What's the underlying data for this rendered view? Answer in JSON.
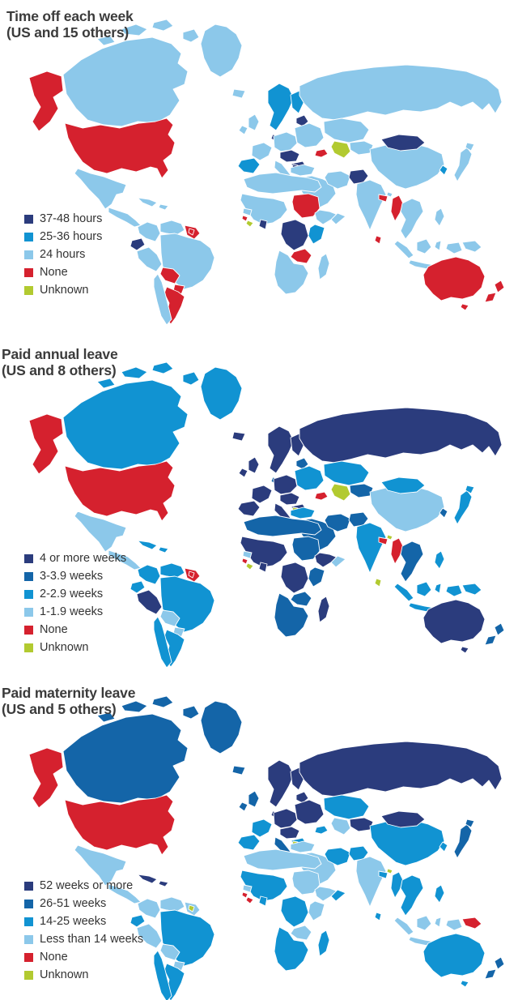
{
  "palette": {
    "navy": "#2b3c7d",
    "dark": "#1465a8",
    "mid": "#1193d2",
    "light": "#8cc8ea",
    "red": "#d5212e",
    "green": "#b2ca30"
  },
  "text_color": "#3b3b3b",
  "maps": [
    {
      "id": "time-off-each-week",
      "title_line1": "Time off each week",
      "title_line2": "(US and 15 others)",
      "legend": [
        {
          "label": "37-48 hours",
          "color_key": "navy"
        },
        {
          "label": "25-36 hours",
          "color_key": "mid"
        },
        {
          "label": "24 hours",
          "color_key": "light"
        },
        {
          "label": "None",
          "color_key": "red"
        },
        {
          "label": "Unknown",
          "color_key": "green"
        }
      ],
      "regions": {
        "greenland": "light",
        "canada": "light",
        "alaska": "red",
        "usa": "red",
        "mexico": "light",
        "central-america": "light",
        "caribbean": "light",
        "colombia": "light",
        "venezuela": "light",
        "guyanas": "red",
        "suriname": "red",
        "ecuador": "navy",
        "peru": "light",
        "brazil": "light",
        "bolivia": "red",
        "paraguay": "red",
        "argentina": "red",
        "chile": "light",
        "iceland": "light",
        "uk": "light",
        "scandinavia": "mid",
        "denmark": "navy",
        "baltics": "navy",
        "eastern-europe": "light",
        "central-europe": "light",
        "france": "light",
        "austria-hungary": "navy",
        "italy": "light",
        "balkans": "navy",
        "bosnia": "navy",
        "iberia": "mid",
        "russia": "light",
        "kazakhstan": "light",
        "central-asia": "light",
        "turkmenistan": "green",
        "caucasus": "red",
        "turkey": "light",
        "middle-east": "light",
        "iran": "light",
        "afghanistan": "navy",
        "india": "light",
        "nepal-bangladesh": "red",
        "bhutan": "light",
        "sri-lanka": "red",
        "myanmar": "red",
        "china": "light",
        "mongolia": "navy",
        "korea": "mid",
        "japan": "light",
        "se-asia": "light",
        "philippines": "light",
        "indonesia": "light",
        "png": "light",
        "australia": "red",
        "nz": "red",
        "north-africa": "light",
        "west-africa": "light",
        "guinea": "light",
        "sierra-leone": "red",
        "liberia": "green",
        "ghana": "navy",
        "sudan": "red",
        "east-africa-horn": "light",
        "somalia": "light",
        "kenya-tanzania": "mid",
        "drc": "navy",
        "zambia-zimbabwe": "red",
        "southern-africa": "light",
        "madagascar": "light"
      }
    },
    {
      "id": "paid-annual-leave",
      "title_line1": "Paid annual leave",
      "title_line2": "(US and 8 others)",
      "legend": [
        {
          "label": "4 or more weeks",
          "color_key": "navy"
        },
        {
          "label": "3-3.9 weeks",
          "color_key": "dark"
        },
        {
          "label": "2-2.9 weeks",
          "color_key": "mid"
        },
        {
          "label": "1-1.9 weeks",
          "color_key": "light"
        },
        {
          "label": "None",
          "color_key": "red"
        },
        {
          "label": "Unknown",
          "color_key": "green"
        }
      ],
      "regions": {
        "greenland": "mid",
        "canada": "mid",
        "alaska": "red",
        "usa": "red",
        "mexico": "light",
        "central-america": "light",
        "caribbean": "mid",
        "colombia": "mid",
        "venezuela": "mid",
        "guyanas": "red",
        "suriname": "red",
        "ecuador": "mid",
        "peru": "navy",
        "brazil": "mid",
        "bolivia": "light",
        "paraguay": "light",
        "argentina": "mid",
        "chile": "mid",
        "iceland": "navy",
        "uk": "navy",
        "scandinavia": "navy",
        "denmark": "dark",
        "baltics": "dark",
        "eastern-europe": "mid",
        "central-europe": "navy",
        "france": "navy",
        "austria-hungary": "navy",
        "italy": "navy",
        "balkans": "navy",
        "bosnia": "green",
        "iberia": "navy",
        "russia": "navy",
        "kazakhstan": "mid",
        "central-asia": "dark",
        "turkmenistan": "green",
        "caucasus": "red",
        "turkey": "mid",
        "middle-east": "dark",
        "iran": "dark",
        "afghanistan": "dark",
        "india": "mid",
        "nepal-bangladesh": "red",
        "bhutan": "green",
        "sri-lanka": "green",
        "myanmar": "red",
        "china": "light",
        "mongolia": "mid",
        "korea": "dark",
        "japan": "mid",
        "se-asia": "dark",
        "philippines": "mid",
        "indonesia": "mid",
        "png": "mid",
        "australia": "navy",
        "nz": "dark",
        "north-africa": "dark",
        "west-africa": "navy",
        "guinea": "light",
        "sierra-leone": "red",
        "liberia": "green",
        "ghana": "navy",
        "sudan": "dark",
        "east-africa-horn": "navy",
        "somalia": "light",
        "kenya-tanzania": "dark",
        "drc": "navy",
        "zambia-zimbabwe": "dark",
        "southern-africa": "dark",
        "madagascar": "navy"
      }
    },
    {
      "id": "paid-maternity-leave",
      "title_line1": "Paid maternity leave",
      "title_line2": "(US and 5 others)",
      "legend": [
        {
          "label": "52 weeks or more",
          "color_key": "navy"
        },
        {
          "label": "26-51 weeks",
          "color_key": "dark"
        },
        {
          "label": "14-25 weeks",
          "color_key": "mid"
        },
        {
          "label": "Less than 14 weeks",
          "color_key": "light"
        },
        {
          "label": "None",
          "color_key": "red"
        },
        {
          "label": "Unknown",
          "color_key": "green"
        }
      ],
      "regions": {
        "greenland": "dark",
        "canada": "dark",
        "alaska": "red",
        "usa": "red",
        "mexico": "light",
        "central-america": "light",
        "caribbean": "navy",
        "colombia": "light",
        "venezuela": "light",
        "guyanas": "light",
        "suriname": "green",
        "ecuador": "mid",
        "peru": "light",
        "brazil": "mid",
        "bolivia": "light",
        "paraguay": "light",
        "argentina": "mid",
        "chile": "mid",
        "iceland": "dark",
        "uk": "dark",
        "scandinavia": "navy",
        "denmark": "navy",
        "baltics": "navy",
        "eastern-europe": "navy",
        "central-europe": "navy",
        "france": "mid",
        "austria-hungary": "navy",
        "italy": "dark",
        "balkans": "mid",
        "bosnia": "green",
        "iberia": "mid",
        "russia": "navy",
        "kazakhstan": "mid",
        "central-asia": "navy",
        "turkmenistan": "light",
        "caucasus": "mid",
        "turkey": "light",
        "middle-east": "light",
        "iran": "mid",
        "afghanistan": "mid",
        "india": "light",
        "nepal-bangladesh": "mid",
        "bhutan": "green",
        "sri-lanka": "mid",
        "myanmar": "mid",
        "china": "mid",
        "mongolia": "navy",
        "korea": "mid",
        "japan": "dark",
        "se-asia": "mid",
        "philippines": "mid",
        "indonesia": "light",
        "png": "red",
        "australia": "mid",
        "nz": "dark",
        "north-africa": "light",
        "west-africa": "mid",
        "guinea": "light",
        "sierra-leone": "red",
        "liberia": "red",
        "ghana": "mid",
        "sudan": "light",
        "east-africa-horn": "light",
        "somalia": "mid",
        "kenya-tanzania": "light",
        "drc": "mid",
        "zambia-zimbabwe": "light",
        "southern-africa": "mid",
        "madagascar": "mid"
      }
    }
  ]
}
